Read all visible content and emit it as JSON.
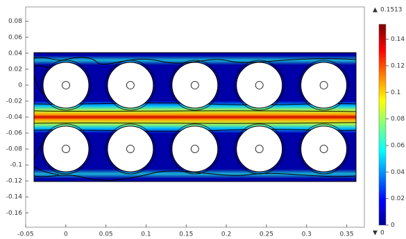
{
  "chart_data": {
    "type": "field",
    "xlim": [
      -0.05,
      0.372
    ],
    "xticks": [
      -0.05,
      0,
      0.05,
      0.1,
      0.15,
      0.2,
      0.25,
      0.3,
      0.35
    ],
    "ylim": [
      -0.178,
      0.098
    ],
    "yticks": [
      0.08,
      0.06,
      0.04,
      0.02,
      0,
      -0.02,
      -0.04,
      -0.06,
      -0.08,
      -0.1,
      -0.12,
      -0.14,
      -0.16
    ],
    "colorbar": {
      "lim": [
        0,
        0.1513
      ],
      "ticks": [
        0,
        0.02,
        0.04,
        0.06,
        0.08,
        0.1,
        0.12,
        0.14
      ],
      "max": 0.1513,
      "min": 0
    }
  }
}
